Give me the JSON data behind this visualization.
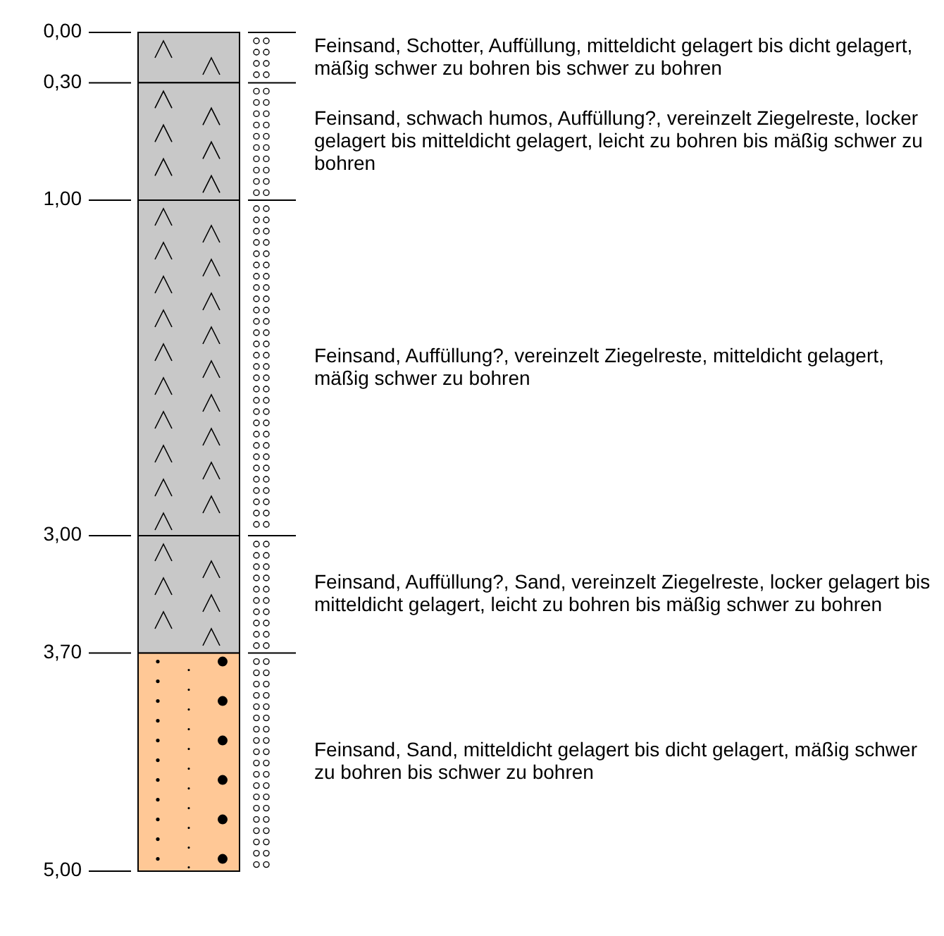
{
  "chart_data": {
    "type": "bar",
    "stacked": true,
    "legend": "right",
    "categories": [
      null
    ],
    "ylim": [
      5,
      0
    ],
    "yticks": [
      {
        "value": 0,
        "label": "0,00"
      },
      {
        "value": 0.3,
        "label": "0,30"
      },
      {
        "value": 1,
        "label": "1,00"
      },
      {
        "value": 3,
        "label": "3,00"
      },
      {
        "value": 3.7,
        "label": "3,70"
      },
      {
        "value": 5,
        "label": "5,00"
      }
    ],
    "series": [
      {
        "name": "Feinsand, Schotter, Auffüllung, mitteldicht gelagert bis dicht gelagert, mäßig schwer zu bohren bis schwer zu bohren",
        "color": "#c8c8c8",
        "values": [
          0.3
        ]
      },
      {
        "name": "Feinsand, schwach humos, Auffüllung?, vereinzelt Ziegelreste, locker gelagert bis mitteldicht gelagert, leicht zu bohren bis mäßig schwer zu bohren",
        "color": "#c8c8c8",
        "values": [
          0.7
        ]
      },
      {
        "name": "Feinsand, Auffüllung?, vereinzelt Ziegelreste, mitteldicht gelagert, mäßig schwer zu bohren",
        "color": "#c8c8c8",
        "values": [
          2.0
        ]
      },
      {
        "name": "Feinsand, Auffüllung?, Sand, vereinzelt Ziegelreste, locker gelagert bis mitteldicht gelagert, leicht zu bohren bis mäßig schwer zu bohren",
        "color": "#c8c8c8",
        "values": [
          0.7
        ]
      },
      {
        "name": "Feinsand, Sand, mitteldicht gelagert bis dicht gelagert, mäßig schwer zu bohren bis schwer zu bohren",
        "color": "#ffc896",
        "values": [
          1.3
        ]
      }
    ]
  }
}
